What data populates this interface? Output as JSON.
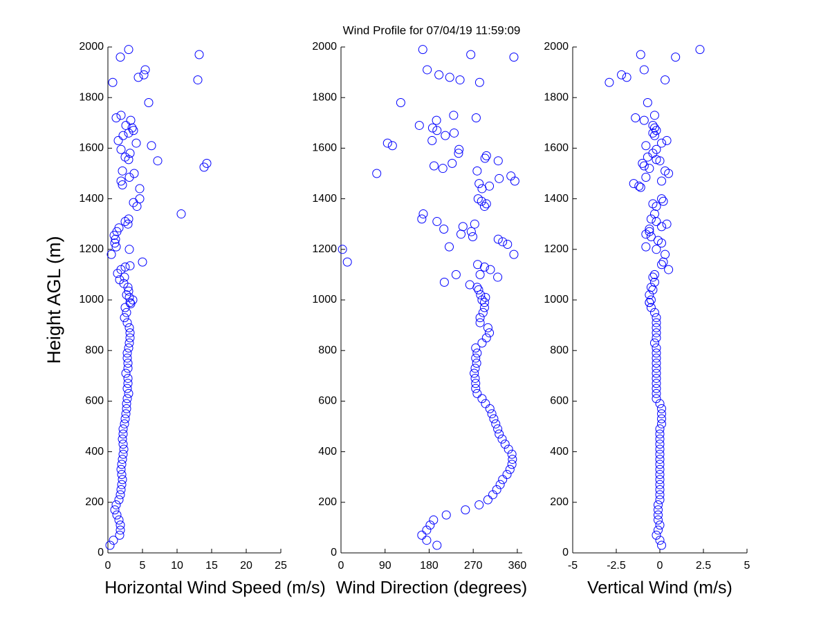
{
  "chart_data": [
    {
      "type": "scatter",
      "color": "#0000ff",
      "xlabel": "Horizontal Wind Speed (m/s)",
      "ylabel": "Height AGL (m)",
      "xlim": [
        0,
        25
      ],
      "xticks": [
        0,
        5,
        10,
        15,
        20,
        25
      ],
      "ylim": [
        0,
        2000
      ],
      "yticks": [
        0,
        200,
        400,
        600,
        800,
        1000,
        1200,
        1400,
        1600,
        1800,
        2000
      ],
      "x": [
        0.3,
        0.8,
        1.7,
        1.8,
        1.8,
        1.6,
        1.3,
        1.0,
        1.2,
        1.6,
        1.8,
        1.9,
        2.0,
        2.1,
        2.0,
        1.9,
        2.0,
        2.1,
        2.2,
        2.3,
        2.2,
        2.1,
        2.2,
        2.2,
        2.4,
        2.5,
        2.6,
        2.7,
        2.7,
        2.8,
        3.0,
        2.8,
        2.9,
        2.9,
        2.6,
        2.9,
        2.9,
        2.8,
        2.8,
        3.0,
        3.1,
        3.2,
        3.2,
        3.1,
        2.8,
        2.4,
        2.7,
        2.5,
        3.2,
        3.0,
        13.2,
        1.8,
        5.4,
        5.2,
        4.4,
        13.0,
        0.7,
        5.9,
        1.9,
        1.2,
        3.3,
        2.6,
        3.5,
        3.7,
        3.0,
        2.2,
        1.5,
        4.1,
        6.3,
        1.9,
        3.2,
        2.5,
        3.0,
        7.2,
        14.3,
        13.9,
        2.1,
        3.8,
        3.1,
        1.9,
        2.1,
        4.6,
        4.6,
        3.7,
        4.2,
        10.6,
        3.0,
        2.5,
        2.9,
        1.6,
        1.3,
        0.9,
        1.1,
        1.0,
        1.2,
        3.1,
        0.5,
        5.0,
        3.2,
        2.5,
        1.9,
        1.4,
        2.4,
        1.7,
        2.3,
        2.9,
        3.0,
        2.7,
        3.1,
        3.6,
        3.3
      ],
      "y": [
        30,
        50,
        70,
        90,
        110,
        130,
        150,
        170,
        190,
        210,
        230,
        250,
        270,
        290,
        310,
        330,
        350,
        370,
        390,
        410,
        430,
        450,
        470,
        490,
        510,
        530,
        550,
        570,
        590,
        610,
        630,
        650,
        670,
        690,
        710,
        730,
        750,
        770,
        790,
        810,
        830,
        850,
        870,
        890,
        910,
        930,
        950,
        970,
        990,
        1990,
        1970,
        1960,
        1910,
        1890,
        1880,
        1870,
        1860,
        1780,
        1730,
        1720,
        1710,
        1690,
        1680,
        1670,
        1660,
        1650,
        1630,
        1620,
        1610,
        1595,
        1580,
        1565,
        1555,
        1550,
        1540,
        1525,
        1510,
        1500,
        1485,
        1470,
        1455,
        1440,
        1400,
        1385,
        1370,
        1340,
        1320,
        1310,
        1300,
        1285,
        1270,
        1255,
        1240,
        1225,
        1210,
        1200,
        1180,
        1150,
        1135,
        1130,
        1120,
        1105,
        1090,
        1080,
        1065,
        1050,
        1035,
        1020,
        1010,
        1000,
        985
      ]
    },
    {
      "type": "scatter",
      "color": "#0000ff",
      "title": "Wind Profile for  07/04/19 11:59:09",
      "xlabel": "Wind Direction (degrees)",
      "xlim": [
        0,
        370
      ],
      "xticks": [
        0,
        90,
        180,
        270,
        360
      ],
      "ylim": [
        0,
        2000
      ],
      "yticks": [
        0,
        200,
        400,
        600,
        800,
        1000,
        1200,
        1400,
        1600,
        1800,
        2000
      ],
      "x": [
        196,
        175,
        165,
        175,
        182,
        189,
        215,
        254,
        282,
        300,
        310,
        318,
        325,
        330,
        339,
        345,
        349,
        350,
        349,
        342,
        335,
        329,
        323,
        320,
        316,
        312,
        308,
        304,
        295,
        288,
        278,
        275,
        275,
        274,
        272,
        274,
        277,
        275,
        278,
        275,
        288,
        297,
        303,
        300,
        284,
        284,
        290,
        293,
        293,
        167,
        265,
        353,
        176,
        200,
        222,
        243,
        283,
        122,
        230,
        276,
        195,
        160,
        187,
        196,
        231,
        213,
        186,
        95,
        105,
        241,
        240,
        297,
        294,
        321,
        227,
        190,
        208,
        278,
        73,
        347,
        323,
        355,
        282,
        303,
        288,
        280,
        287,
        297,
        293,
        168,
        165,
        196,
        273,
        249,
        210,
        266,
        245,
        269,
        321,
        330,
        340,
        221,
        3,
        353,
        13,
        279,
        293,
        305,
        235,
        284,
        320,
        211,
        263,
        278,
        281,
        285,
        295,
        288
      ],
      "y": [
        30,
        50,
        70,
        90,
        110,
        130,
        150,
        170,
        190,
        210,
        230,
        250,
        270,
        290,
        310,
        330,
        350,
        370,
        390,
        410,
        430,
        450,
        470,
        490,
        510,
        530,
        550,
        570,
        590,
        610,
        630,
        650,
        670,
        690,
        710,
        730,
        750,
        770,
        790,
        810,
        830,
        850,
        870,
        890,
        910,
        930,
        950,
        970,
        990,
        1990,
        1970,
        1960,
        1910,
        1890,
        1880,
        1870,
        1860,
        1780,
        1730,
        1720,
        1710,
        1690,
        1680,
        1670,
        1660,
        1650,
        1630,
        1620,
        1610,
        1595,
        1580,
        1570,
        1560,
        1550,
        1540,
        1530,
        1520,
        1510,
        1500,
        1490,
        1480,
        1470,
        1460,
        1450,
        1440,
        1400,
        1390,
        1380,
        1370,
        1340,
        1320,
        1310,
        1300,
        1290,
        1280,
        1270,
        1260,
        1250,
        1240,
        1230,
        1220,
        1210,
        1200,
        1180,
        1150,
        1140,
        1130,
        1120,
        1100,
        1100,
        1090,
        1070,
        1060,
        1050,
        1040,
        1020,
        1010,
        1000
      ]
    },
    {
      "type": "scatter",
      "color": "#0000ff",
      "xlabel": "Vertical Wind (m/s)",
      "xlim": [
        -5,
        5
      ],
      "xticks": [
        -5,
        -2.5,
        0,
        2.5,
        5
      ],
      "ylim": [
        0,
        2000
      ],
      "yticks": [
        0,
        200,
        400,
        600,
        800,
        1000,
        1200,
        1400,
        1600,
        1800,
        2000
      ],
      "x": [
        0.1,
        0.0,
        -0.2,
        -0.1,
        0.0,
        -0.1,
        -0.1,
        -0.1,
        -0.1,
        0.0,
        0.0,
        0.0,
        0.0,
        0.0,
        0.0,
        0.0,
        0.0,
        0.0,
        0.0,
        0.0,
        0.0,
        0.0,
        0.0,
        0.0,
        0.1,
        0.1,
        0.1,
        0.1,
        0.0,
        -0.2,
        -0.2,
        -0.2,
        -0.2,
        -0.2,
        -0.2,
        -0.2,
        -0.2,
        -0.2,
        -0.2,
        -0.2,
        -0.3,
        -0.2,
        -0.2,
        -0.2,
        -0.2,
        -0.2,
        -0.3,
        -0.5,
        -0.6,
        2.3,
        -1.1,
        0.9,
        -0.9,
        -2.2,
        -1.9,
        0.3,
        -2.9,
        -0.7,
        -0.3,
        -1.4,
        -0.9,
        -0.4,
        -0.3,
        -0.2,
        -0.4,
        -0.3,
        0.4,
        0.1,
        -0.8,
        -0.2,
        -0.4,
        -0.7,
        -0.2,
        0.0,
        -1.0,
        -0.9,
        -0.6,
        0.3,
        0.5,
        -0.8,
        0.1,
        -1.5,
        -1.2,
        -1.1,
        0.1,
        0.2,
        -0.4,
        -0.2,
        -0.3,
        -0.5,
        -0.2,
        0.4,
        0.1,
        -0.6,
        -0.6,
        -0.8,
        -0.5,
        -0.1,
        0.1,
        -0.8,
        -0.2,
        0.3,
        0.2,
        0.1,
        0.5,
        -0.3,
        -0.4,
        -0.3,
        -0.5,
        -0.4,
        -0.6,
        -0.5,
        -0.6
      ],
      "y": [
        30,
        50,
        70,
        90,
        110,
        130,
        150,
        170,
        190,
        210,
        230,
        250,
        270,
        290,
        310,
        330,
        350,
        370,
        390,
        410,
        430,
        450,
        470,
        490,
        510,
        530,
        550,
        570,
        590,
        610,
        630,
        650,
        670,
        690,
        710,
        730,
        750,
        770,
        790,
        810,
        830,
        850,
        870,
        890,
        910,
        930,
        950,
        970,
        990,
        1990,
        1970,
        1960,
        1910,
        1890,
        1880,
        1870,
        1860,
        1780,
        1730,
        1720,
        1710,
        1690,
        1680,
        1670,
        1660,
        1650,
        1630,
        1620,
        1610,
        1595,
        1580,
        1565,
        1555,
        1550,
        1540,
        1530,
        1520,
        1510,
        1500,
        1485,
        1470,
        1460,
        1450,
        1445,
        1400,
        1390,
        1380,
        1370,
        1340,
        1320,
        1310,
        1300,
        1290,
        1280,
        1270,
        1260,
        1250,
        1235,
        1225,
        1210,
        1200,
        1180,
        1150,
        1140,
        1120,
        1100,
        1090,
        1070,
        1050,
        1040,
        1020,
        1000,
        990
      ]
    }
  ]
}
